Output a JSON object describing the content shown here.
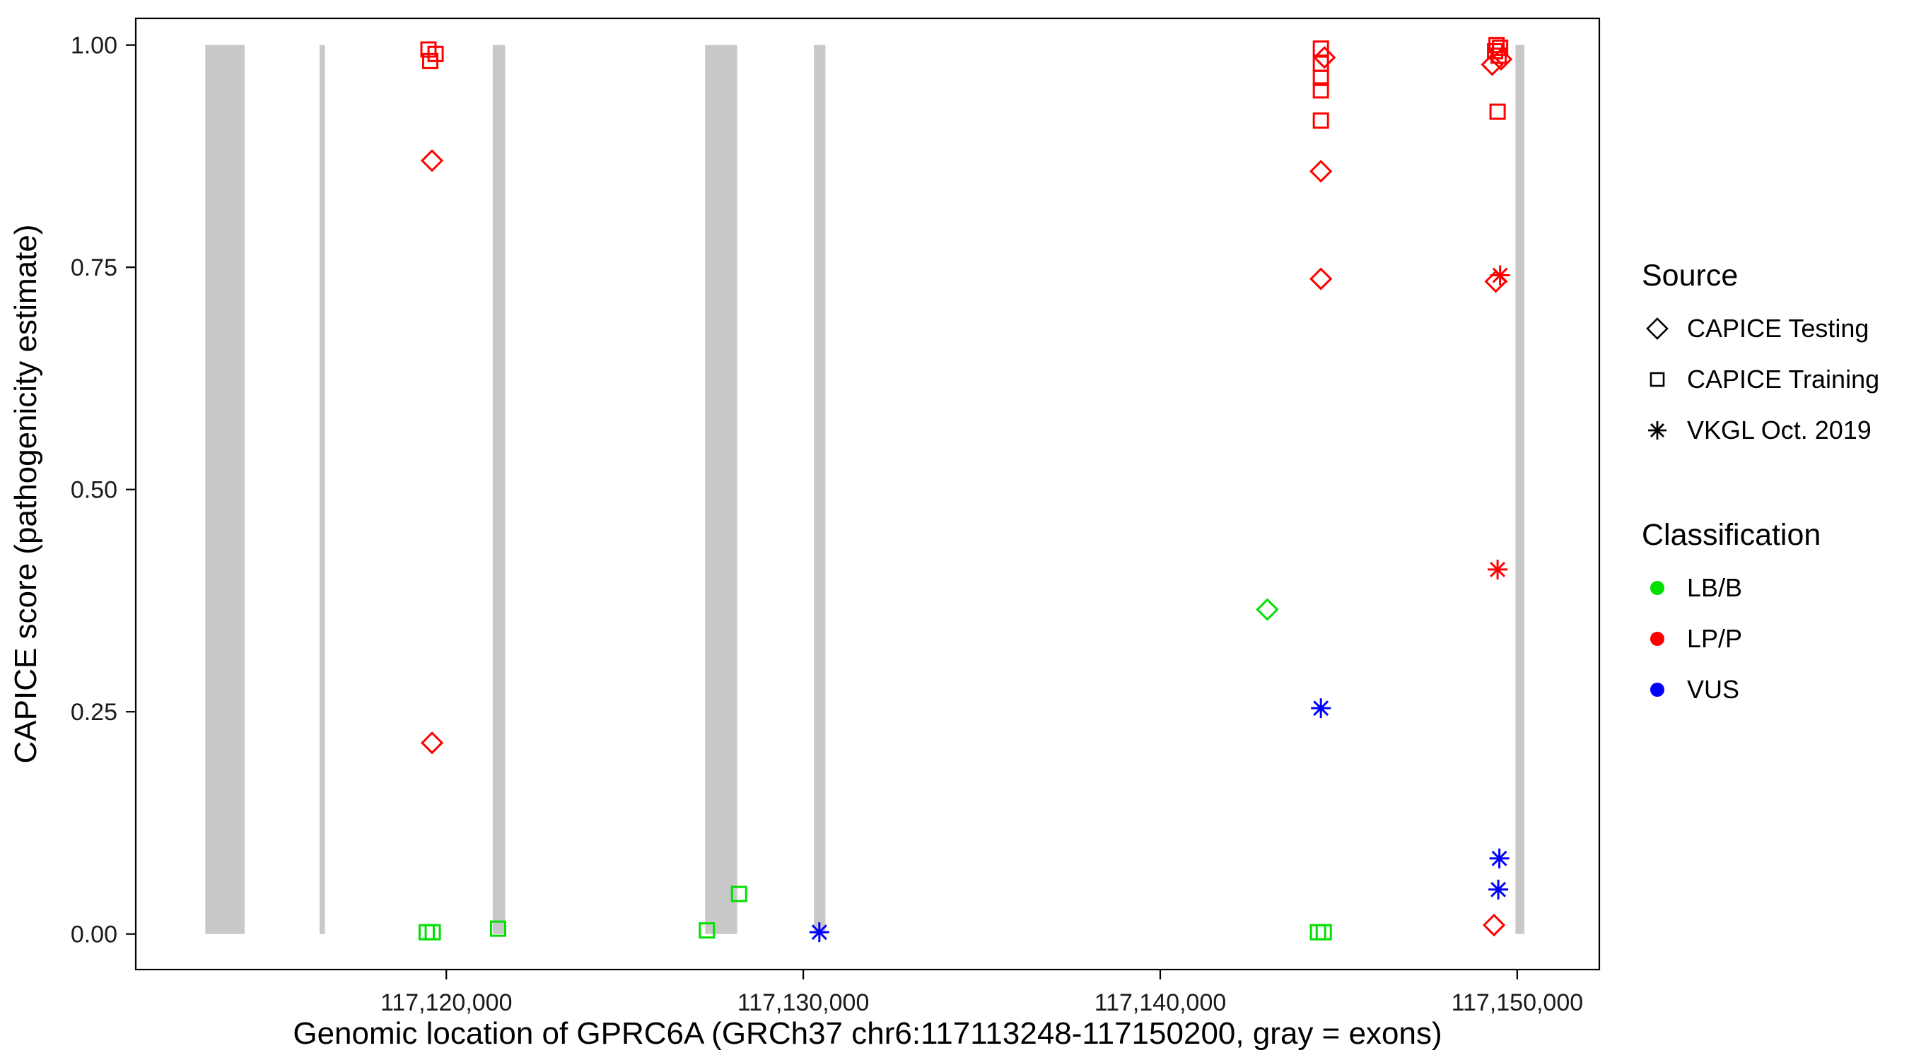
{
  "figure": {
    "background": "#ffffff"
  },
  "chart_data": {
    "type": "scatter",
    "title": "",
    "xlabel": "Genomic location of GPRC6A (GRCh37 chr6:117113248-117150200, gray = exons)",
    "ylabel": "CAPICE score (pathogenicity estimate)",
    "x_domain": [
      117111300,
      117152300
    ],
    "y_domain": [
      -0.04,
      1.03
    ],
    "grid": false,
    "legend_position": "right",
    "x_ticks": [
      {
        "value": 117120000,
        "label": "117,120,000"
      },
      {
        "value": 117130000,
        "label": "117,130,000"
      },
      {
        "value": 117140000,
        "label": "117,140,000"
      },
      {
        "value": 117150000,
        "label": "117,150,000"
      }
    ],
    "y_ticks": [
      {
        "value": 0.0,
        "label": "0.00"
      },
      {
        "value": 0.25,
        "label": "0.25"
      },
      {
        "value": 0.5,
        "label": "0.50"
      },
      {
        "value": 0.75,
        "label": "0.75"
      },
      {
        "value": 1.0,
        "label": "1.00"
      }
    ],
    "exon_color": "#c8c8c8",
    "exons": [
      [
        117113248,
        117114350
      ],
      [
        117116450,
        117116600
      ],
      [
        117121300,
        117121650
      ],
      [
        117127250,
        117128150
      ],
      [
        117130300,
        117130620
      ],
      [
        117149950,
        117150200
      ]
    ],
    "classification_colors": {
      "LB/B": "#00e000",
      "LP/P": "#ff0000",
      "VUS": "#0000ff"
    },
    "source_shapes": {
      "CAPICE Testing": "diamond",
      "CAPICE Training": "square",
      "VKGL Oct. 2019": "asterisk"
    },
    "points": [
      {
        "x": 117119500,
        "y": 0.995,
        "source": "CAPICE Training",
        "classification": "LP/P"
      },
      {
        "x": 117119700,
        "y": 0.99,
        "source": "CAPICE Training",
        "classification": "LP/P"
      },
      {
        "x": 117119550,
        "y": 0.982,
        "source": "CAPICE Training",
        "classification": "LP/P"
      },
      {
        "x": 117119600,
        "y": 0.87,
        "source": "CAPICE Testing",
        "classification": "LP/P"
      },
      {
        "x": 117119600,
        "y": 0.215,
        "source": "CAPICE Testing",
        "classification": "LP/P"
      },
      {
        "x": 117119450,
        "y": 0.002,
        "source": "CAPICE Training",
        "classification": "LB/B"
      },
      {
        "x": 117119620,
        "y": 0.002,
        "source": "CAPICE Training",
        "classification": "LB/B"
      },
      {
        "x": 117121450,
        "y": 0.006,
        "source": "CAPICE Training",
        "classification": "LB/B"
      },
      {
        "x": 117127300,
        "y": 0.004,
        "source": "CAPICE Training",
        "classification": "LB/B"
      },
      {
        "x": 117128200,
        "y": 0.045,
        "source": "CAPICE Training",
        "classification": "LB/B"
      },
      {
        "x": 117130450,
        "y": 0.002,
        "source": "VKGL Oct. 2019",
        "classification": "VUS"
      },
      {
        "x": 117144500,
        "y": 0.996,
        "source": "CAPICE Training",
        "classification": "LP/P"
      },
      {
        "x": 117144600,
        "y": 0.986,
        "source": "CAPICE Testing",
        "classification": "LP/P"
      },
      {
        "x": 117144500,
        "y": 0.979,
        "source": "CAPICE Training",
        "classification": "LP/P"
      },
      {
        "x": 117144500,
        "y": 0.963,
        "source": "CAPICE Training",
        "classification": "LP/P"
      },
      {
        "x": 117144500,
        "y": 0.949,
        "source": "CAPICE Training",
        "classification": "LP/P"
      },
      {
        "x": 117144500,
        "y": 0.915,
        "source": "CAPICE Training",
        "classification": "LP/P"
      },
      {
        "x": 117144500,
        "y": 0.858,
        "source": "CAPICE Testing",
        "classification": "LP/P"
      },
      {
        "x": 117144500,
        "y": 0.737,
        "source": "CAPICE Testing",
        "classification": "LP/P"
      },
      {
        "x": 117143000,
        "y": 0.365,
        "source": "CAPICE Testing",
        "classification": "LB/B"
      },
      {
        "x": 117144500,
        "y": 0.254,
        "source": "VKGL Oct. 2019",
        "classification": "VUS"
      },
      {
        "x": 117144420,
        "y": 0.002,
        "source": "CAPICE Training",
        "classification": "LB/B"
      },
      {
        "x": 117144580,
        "y": 0.002,
        "source": "CAPICE Training",
        "classification": "LB/B"
      },
      {
        "x": 117149420,
        "y": 1.0,
        "source": "CAPICE Training",
        "classification": "LP/P"
      },
      {
        "x": 117149520,
        "y": 0.997,
        "source": "CAPICE Training",
        "classification": "LP/P"
      },
      {
        "x": 117149380,
        "y": 0.993,
        "source": "CAPICE Training",
        "classification": "LP/P"
      },
      {
        "x": 117149480,
        "y": 0.988,
        "source": "CAPICE Training",
        "classification": "LP/P"
      },
      {
        "x": 117149550,
        "y": 0.984,
        "source": "CAPICE Testing",
        "classification": "LP/P"
      },
      {
        "x": 117149300,
        "y": 0.978,
        "source": "CAPICE Testing",
        "classification": "LP/P"
      },
      {
        "x": 117149450,
        "y": 0.925,
        "source": "CAPICE Training",
        "classification": "LP/P"
      },
      {
        "x": 117149520,
        "y": 0.741,
        "source": "VKGL Oct. 2019",
        "classification": "LP/P"
      },
      {
        "x": 117149400,
        "y": 0.734,
        "source": "CAPICE Testing",
        "classification": "LP/P"
      },
      {
        "x": 117149450,
        "y": 0.41,
        "source": "VKGL Oct. 2019",
        "classification": "LP/P"
      },
      {
        "x": 117149500,
        "y": 0.085,
        "source": "VKGL Oct. 2019",
        "classification": "VUS"
      },
      {
        "x": 117149470,
        "y": 0.05,
        "source": "VKGL Oct. 2019",
        "classification": "VUS"
      },
      {
        "x": 117149350,
        "y": 0.01,
        "source": "CAPICE Testing",
        "classification": "LP/P"
      }
    ]
  },
  "legend": {
    "source": {
      "title": "Source",
      "items": [
        {
          "label": "CAPICE Testing",
          "shape": "diamond"
        },
        {
          "label": "CAPICE Training",
          "shape": "square"
        },
        {
          "label": "VKGL Oct. 2019",
          "shape": "asterisk"
        }
      ]
    },
    "classification": {
      "title": "Classification",
      "items": [
        {
          "label": "LB/B",
          "color": "#00e000"
        },
        {
          "label": "LP/P",
          "color": "#ff0000"
        },
        {
          "label": "VUS",
          "color": "#0000ff"
        }
      ]
    }
  }
}
